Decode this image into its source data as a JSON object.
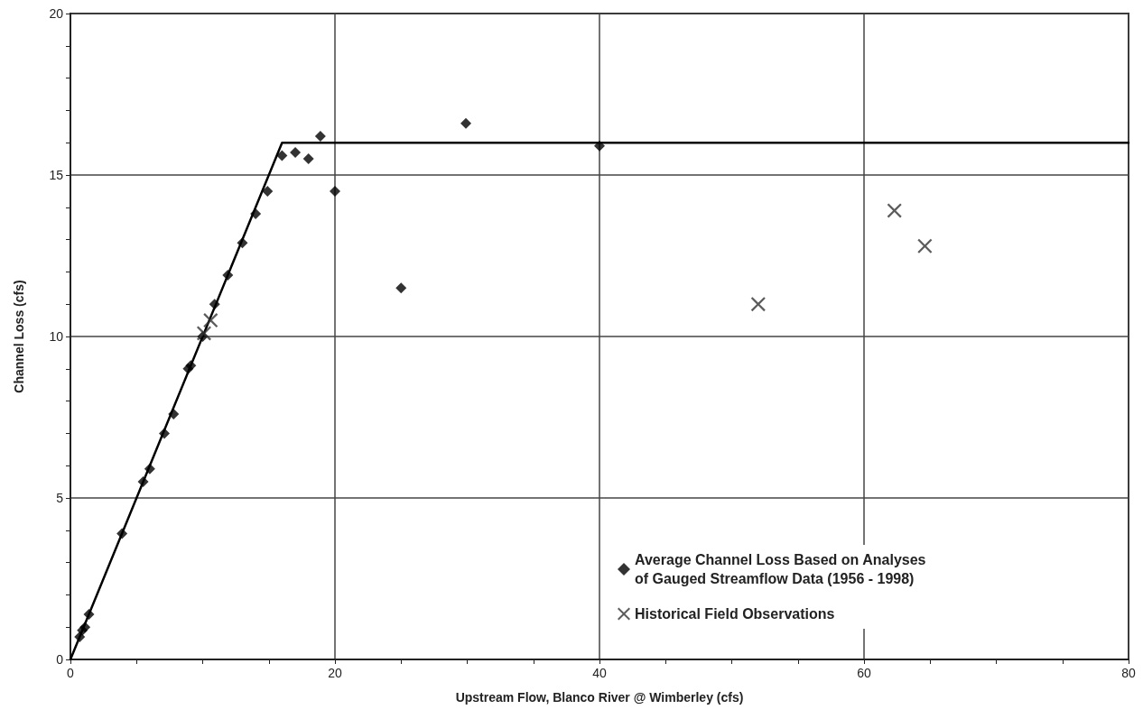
{
  "chart_data": {
    "type": "scatter",
    "xlabel": "Upstream Flow, Blanco River @ Wimberley (cfs)",
    "ylabel": "Channel Loss (cfs)",
    "xlim": [
      0,
      80
    ],
    "ylim": [
      0,
      20
    ],
    "xticks": [
      0,
      {
        "value": 5,
        "label": null
      },
      {
        "value": 10,
        "label": null
      },
      {
        "value": 15,
        "label": null
      },
      20,
      {
        "value": 25,
        "label": null
      },
      {
        "value": 30,
        "label": null
      },
      {
        "value": 35,
        "label": null
      },
      40,
      {
        "value": 45,
        "label": null
      },
      {
        "value": 50,
        "label": null
      },
      {
        "value": 55,
        "label": null
      },
      60,
      {
        "value": 65,
        "label": null
      },
      {
        "value": 70,
        "label": null
      },
      {
        "value": 75,
        "label": null
      },
      80
    ],
    "yticks": [
      0,
      {
        "value": 1,
        "label": null
      },
      {
        "value": 2,
        "label": null
      },
      {
        "value": 3,
        "label": null
      },
      {
        "value": 4,
        "label": null
      },
      5,
      {
        "value": 6,
        "label": null
      },
      {
        "value": 7,
        "label": null
      },
      {
        "value": 8,
        "label": null
      },
      {
        "value": 9,
        "label": null
      },
      10,
      {
        "value": 11,
        "label": null
      },
      {
        "value": 12,
        "label": null
      },
      {
        "value": 13,
        "label": null
      },
      {
        "value": 14,
        "label": null
      },
      15,
      {
        "value": 16,
        "label": null
      },
      {
        "value": 17,
        "label": null
      },
      {
        "value": 18,
        "label": null
      },
      {
        "value": 19,
        "label": null
      },
      20
    ],
    "grid": true,
    "legend": "bottom right",
    "series": [
      {
        "type": "line",
        "color": "#000000",
        "marker": "none",
        "line_style": "solid",
        "x": [
          0,
          16,
          80
        ],
        "values": [
          0,
          16,
          16
        ]
      },
      {
        "name": "Average Channel Loss Based on Analyses of Gauged Streamflow Data (1956 - 1998)",
        "color": "#000000",
        "marker": "diamond",
        "x": [
          0.7,
          0.9,
          1.1,
          1.4,
          3.9,
          5.5,
          6.0,
          7.1,
          7.8,
          8.9,
          9.1,
          10.0,
          10.9,
          11.9,
          13.0,
          14.0,
          14.9,
          16.0,
          17.0,
          18.0,
          18.9,
          20.0,
          25.0,
          29.9,
          40.0
        ],
        "values": [
          0.7,
          0.9,
          1.0,
          1.4,
          3.9,
          5.5,
          5.9,
          7.0,
          7.6,
          9.0,
          9.1,
          10.0,
          11.0,
          11.9,
          12.9,
          13.8,
          14.5,
          15.6,
          15.7,
          15.5,
          16.2,
          14.5,
          11.5,
          16.6,
          15.9
        ]
      },
      {
        "name": "Historical Field Observations",
        "color": "#333333",
        "marker": "cross",
        "x": [
          10.1,
          10.6,
          52.0,
          62.3,
          64.6
        ],
        "values": [
          10.1,
          10.5,
          11.0,
          13.9,
          12.8
        ]
      }
    ]
  }
}
